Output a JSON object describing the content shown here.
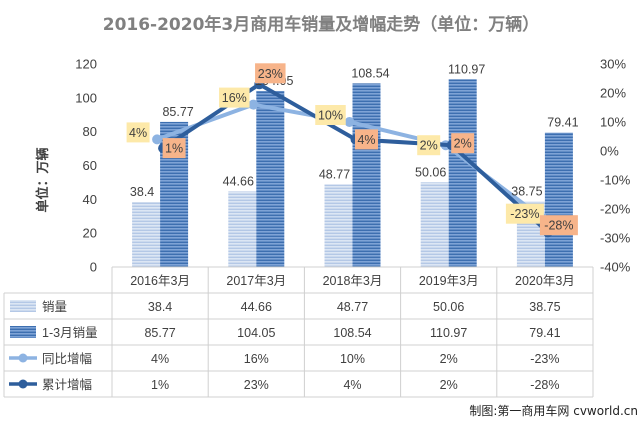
{
  "chart_data": {
    "type": "bar",
    "title": "2016-2020年3月商用车销量及增幅走势（单位：万辆）",
    "ylabel": "单位：万辆",
    "ylim": [
      0,
      120
    ],
    "y_ticks": [
      "0",
      "20",
      "40",
      "60",
      "80",
      "100",
      "120"
    ],
    "y2lim": [
      -40,
      30
    ],
    "y2_ticks": [
      "-40%",
      "-30%",
      "-20%",
      "-10%",
      "0%",
      "10%",
      "20%",
      "30%"
    ],
    "categories": [
      "2016年3月",
      "2017年3月",
      "2018年3月",
      "2019年3月",
      "2020年3月"
    ],
    "series": [
      {
        "name": "销量",
        "kind": "bar",
        "axis": "left",
        "values": [
          38.4,
          44.66,
          48.77,
          50.06,
          38.75
        ],
        "labels": [
          "38.4",
          "44.66",
          "48.77",
          "50.06",
          "38.75"
        ],
        "color": "#c5d5ec"
      },
      {
        "name": "1-3月销量",
        "kind": "bar",
        "axis": "left",
        "values": [
          85.77,
          104.05,
          108.54,
          110.97,
          79.41
        ],
        "labels": [
          "85.77",
          "104.05",
          "108.54",
          "110.97",
          "79.41"
        ],
        "color": "#4f81bd"
      },
      {
        "name": "同比增幅",
        "kind": "line",
        "axis": "right",
        "values": [
          4,
          16,
          10,
          2,
          -23
        ],
        "labels": [
          "4%",
          "16%",
          "10%",
          "2%",
          "-23%"
        ],
        "color": "#8db3e2",
        "label_bg": "#fde9a9"
      },
      {
        "name": "累计增幅",
        "kind": "line",
        "axis": "right",
        "values": [
          1,
          23,
          4,
          2,
          -28
        ],
        "labels": [
          "1%",
          "23%",
          "4%",
          "2%",
          "-28%"
        ],
        "color": "#2e5e9c",
        "label_bg": "#f7b48a"
      }
    ],
    "legend": "data-table-below",
    "grid": false
  },
  "credit": "制图:第一商用车网 cvworld.cn"
}
